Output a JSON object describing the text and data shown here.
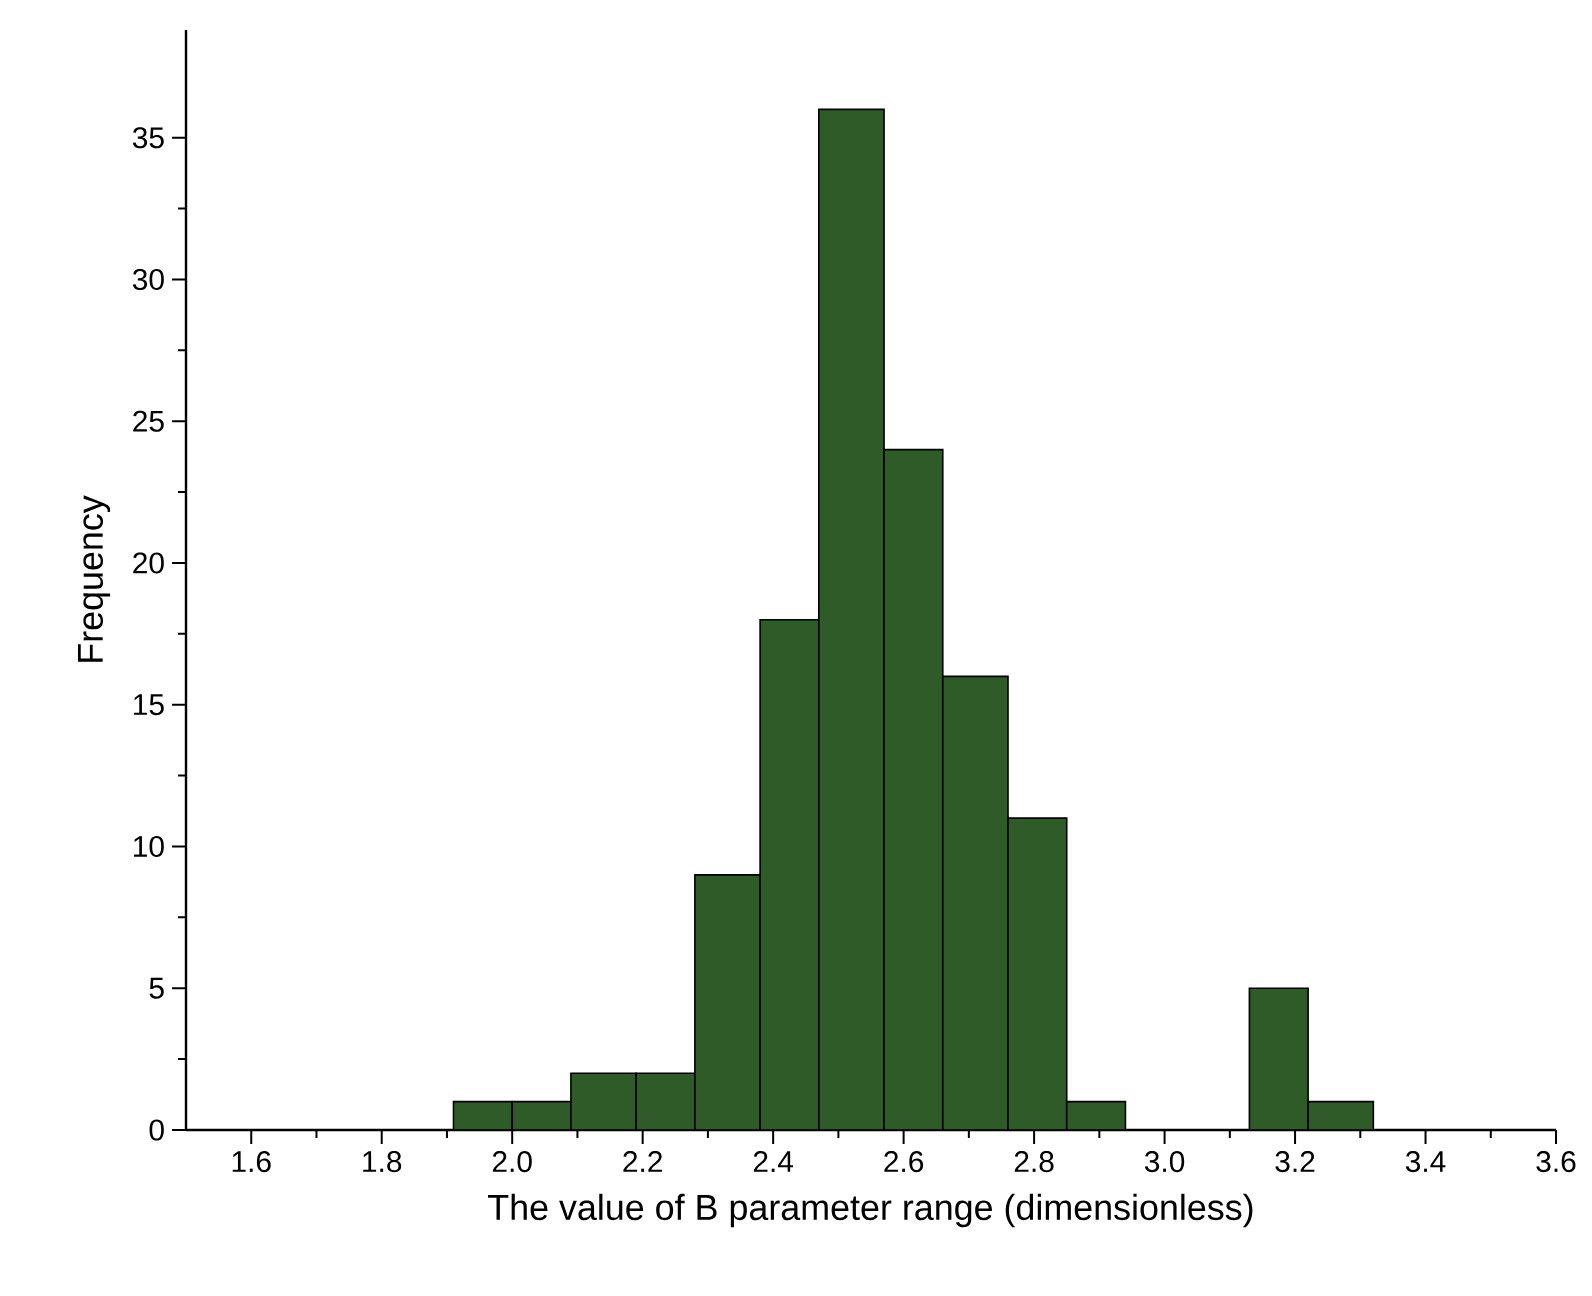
{
  "chart_data": {
    "type": "histogram",
    "xlabel": "The value of B parameter range (dimensionless)",
    "ylabel": "Frequency",
    "bins": [
      1.91,
      2.0,
      2.09,
      2.19,
      2.28,
      2.38,
      2.47,
      2.57,
      2.66,
      2.76,
      2.85,
      2.94,
      3.13,
      3.22,
      3.32
    ],
    "values": [
      1,
      1,
      2,
      2,
      9,
      18,
      36,
      24,
      16,
      11,
      1,
      0,
      5,
      1
    ],
    "color": "#2e5b28",
    "xlim": [
      1.5,
      3.6
    ],
    "xticks": [
      1.6,
      1.8,
      {
        "value": 2,
        "label": "2.0"
      },
      2.2,
      2.4,
      2.6,
      2.8,
      {
        "value": 3,
        "label": "3.0"
      },
      3.2,
      3.4,
      3.6
    ],
    "ylim": [
      0,
      38.8
    ],
    "yticks": [
      0,
      5,
      10,
      15,
      20,
      25,
      30,
      35
    ]
  }
}
